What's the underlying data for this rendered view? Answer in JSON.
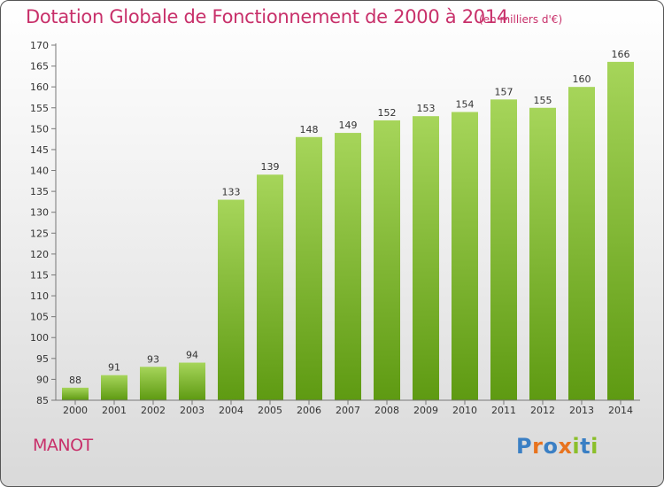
{
  "header": {
    "title": "Dotation Globale de Fonctionnement de 2000 à 2014",
    "subtitle": "(en milliers d'€)"
  },
  "footer": {
    "commune": "MANOT",
    "logo_text": "Proxiti"
  },
  "colors": {
    "title": "#c8306a",
    "bar_top": "#a6d55a",
    "bar_bottom": "#5e9a12",
    "logo_letters": [
      "#3a7fc4",
      "#e8731e",
      "#3a7fc4",
      "#e8731e",
      "#8bbf2a",
      "#3a7fc4",
      "#8bbf2a"
    ]
  },
  "chart_data": {
    "type": "bar",
    "title": "Dotation Globale de Fonctionnement de 2000 à 2014",
    "subtitle": "(en milliers d'€)",
    "categories": [
      "2000",
      "2001",
      "2002",
      "2003",
      "2004",
      "2005",
      "2006",
      "2007",
      "2008",
      "2009",
      "2010",
      "2011",
      "2012",
      "2013",
      "2014"
    ],
    "values": [
      88,
      91,
      93,
      94,
      133,
      139,
      148,
      149,
      152,
      153,
      154,
      157,
      155,
      160,
      166
    ],
    "ylim": [
      85,
      170
    ],
    "ytick_step": 5,
    "grid": false,
    "legend": "none"
  }
}
